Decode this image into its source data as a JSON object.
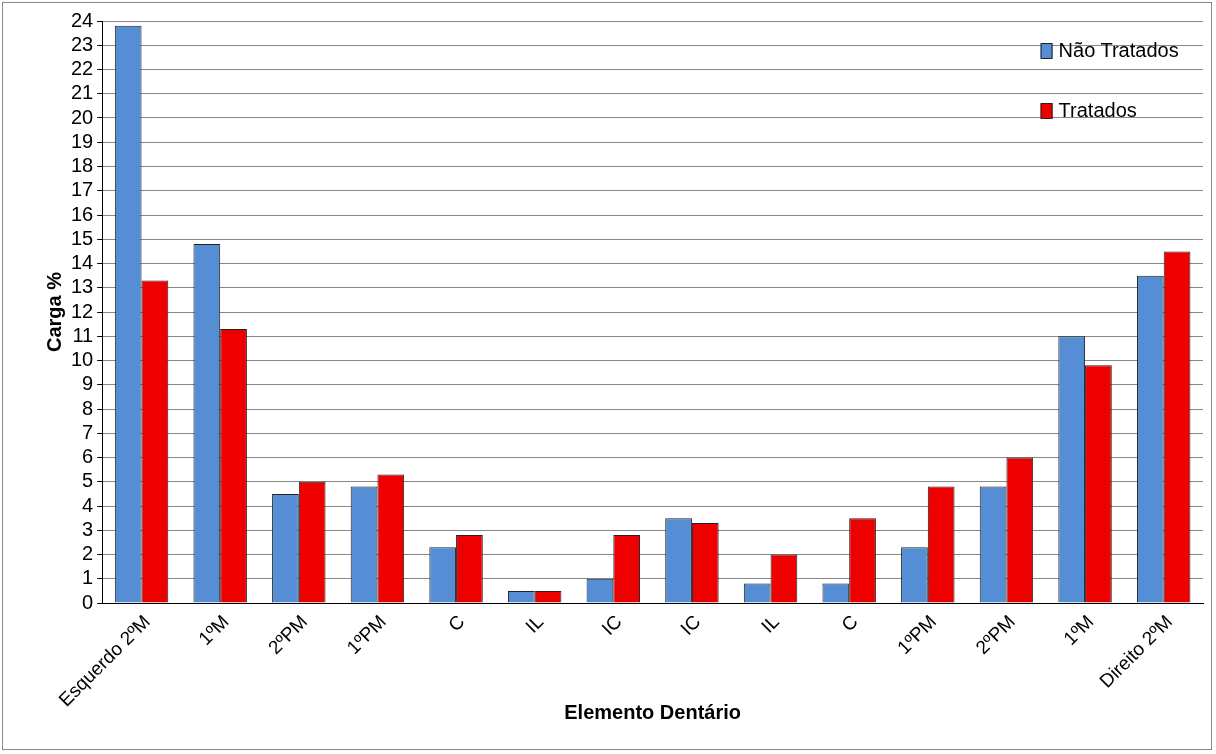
{
  "chart_data": {
    "type": "bar",
    "xlabel": "Elemento Dentário",
    "ylabel": "Carga %",
    "categories": [
      "Esquerdo 2ºM",
      "1ºM",
      "2ºPM",
      "1ºPM",
      "C",
      "IL",
      "IC",
      "IC",
      "IL",
      "C",
      "1ºPM",
      "2ºPM",
      "1ºM",
      "Direito 2ºM"
    ],
    "series": [
      {
        "name": "Não Tratados",
        "color": "#558ed5",
        "values": [
          23.8,
          14.8,
          4.5,
          4.8,
          2.3,
          0.5,
          1.0,
          3.5,
          0.8,
          0.8,
          2.3,
          4.8,
          11.0,
          13.5
        ]
      },
      {
        "name": "Tratados",
        "color": "#ee0000",
        "values": [
          13.3,
          11.3,
          5.0,
          5.3,
          2.8,
          0.5,
          2.8,
          3.3,
          2.0,
          3.5,
          4.8,
          6.0,
          9.8,
          14.5
        ]
      }
    ],
    "ylim": [
      0,
      24
    ],
    "yticks": [
      0,
      1,
      2,
      3,
      4,
      5,
      6,
      7,
      8,
      9,
      10,
      11,
      12,
      13,
      14,
      15,
      16,
      17,
      18,
      19,
      20,
      21,
      22,
      23,
      24
    ],
    "grid": "y",
    "legend": "top right"
  }
}
